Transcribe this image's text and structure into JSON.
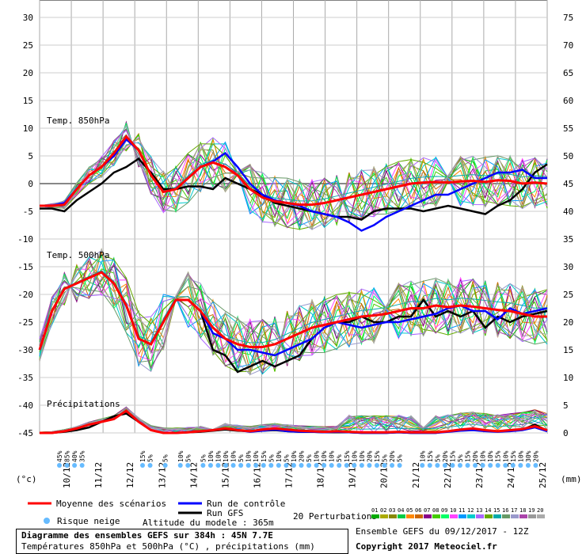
{
  "chart_data": {
    "type": "line",
    "panel_labels": [
      "Temp. 850hPa",
      "Temp. 500hPa",
      "Précipitations"
    ],
    "left_axis": {
      "unit": "(°c)",
      "ticks": [
        30,
        25,
        20,
        15,
        10,
        5,
        0,
        -5,
        -10,
        -15,
        -20,
        -25,
        -30,
        -35,
        -40,
        -45
      ],
      "range": [
        -45,
        30
      ]
    },
    "right_axis": {
      "unit": "(mm)",
      "ticks": [
        75,
        70,
        65,
        60,
        55,
        50,
        45,
        40,
        35,
        30,
        25,
        20,
        15,
        10,
        5,
        0
      ],
      "range": [
        0,
        75
      ]
    },
    "x_dates": [
      "10/12",
      "11/12",
      "12/12",
      "13/12",
      "14/12",
      "15/12",
      "16/12",
      "17/12",
      "18/12",
      "19/12",
      "20/12",
      "21/12",
      "22/12",
      "23/12",
      "24/12",
      "25/12"
    ],
    "snow_risk_pct": [
      "45%",
      "85%",
      "40%",
      "35%",
      "",
      "",
      "",
      "",
      "",
      "",
      "",
      "15%",
      "5%",
      "",
      "5%",
      "",
      "10%",
      "5%",
      "",
      "5%",
      "10%",
      "10%",
      "10%",
      "10%",
      "5%",
      "10%",
      "10%",
      "15%",
      "5%",
      "10%",
      "5%",
      "10%",
      "20%",
      "5%",
      "10%",
      "10%",
      "10%",
      "5%",
      "15%",
      "10%",
      "10%",
      "20%",
      "15%",
      "5%",
      "20%",
      "5%",
      "",
      "",
      "10%",
      "15%",
      "5%",
      "20%",
      "15%",
      "5%",
      "15%",
      "20%",
      "10%",
      "10%",
      "15%",
      "10%",
      "15%",
      "10%",
      "30%",
      "20%"
    ],
    "series": [
      {
        "name": "Moyenne des scénarios",
        "color": "#ff0000",
        "t850": [
          -4,
          -4,
          -3.8,
          -1,
          1.5,
          3,
          5.5,
          8.5,
          6,
          1.5,
          -1.5,
          -1,
          1,
          3,
          3.8,
          3,
          1.5,
          -1,
          -2.5,
          -3.2,
          -3.5,
          -3.8,
          -3.8,
          -3.5,
          -3,
          -2.5,
          -2,
          -1.5,
          -1,
          -0.5,
          0,
          0.2,
          0.3,
          0.2,
          0.4,
          0.5,
          0.3,
          0.6,
          0.5,
          0,
          0.2,
          0
        ],
        "t500": [
          -30,
          -23,
          -19,
          -18,
          -17,
          -16,
          -18,
          -22,
          -28,
          -29,
          -25,
          -21,
          -21,
          -23,
          -26,
          -28,
          -29,
          -29.5,
          -29.5,
          -29,
          -28,
          -27,
          -26,
          -25.5,
          -25,
          -24.5,
          -24,
          -23.8,
          -23.5,
          -23,
          -22.5,
          -22.5,
          -22,
          -22.3,
          -22,
          -22.2,
          -22.5,
          -22.8,
          -23,
          -23.5,
          -24,
          -24
        ],
        "precip": [
          0,
          0,
          0.3,
          0.8,
          1.5,
          2,
          2.5,
          4,
          2,
          0.5,
          0,
          0,
          0.1,
          0.3,
          0.5,
          0.8,
          0.5,
          0.3,
          0.6,
          0.8,
          0.6,
          0.4,
          0.3,
          0.2,
          0.3,
          0.2,
          0.1,
          0.1,
          0.1,
          0.2,
          0.1,
          0.1,
          0.1,
          0.3,
          0.6,
          0.8,
          0.5,
          0.3,
          0.5,
          0.7,
          1.2,
          0.5
        ]
      },
      {
        "name": "Run de contrôle",
        "color": "#0000ff",
        "t850": [
          -4,
          -4,
          -3.5,
          -1,
          1.5,
          3,
          5,
          8,
          6,
          1.5,
          -1.5,
          -1,
          1,
          3,
          4,
          5.5,
          3,
          0,
          -2,
          -3,
          -3.5,
          -4,
          -5,
          -5.5,
          -6,
          -7,
          -8.5,
          -7.5,
          -6,
          -5,
          -4,
          -3,
          -2,
          -2,
          -1,
          0,
          1,
          2,
          2,
          2.5,
          1,
          1
        ],
        "t500": [
          -30,
          -23,
          -19,
          -18,
          -17,
          -16,
          -18,
          -22,
          -28,
          -29,
          -25,
          -21,
          -21,
          -23,
          -27,
          -28,
          -30,
          -30,
          -30.5,
          -31,
          -30,
          -29,
          -28,
          -26,
          -25,
          -25.5,
          -26,
          -25.5,
          -25,
          -25,
          -24.5,
          -24,
          -23.5,
          -22.5,
          -22,
          -23,
          -23,
          -24.5,
          -22.5,
          -23.5,
          -23,
          -22.5
        ],
        "precip": [
          0,
          0,
          0.3,
          0.8,
          1.5,
          2,
          2.5,
          4,
          2,
          0.5,
          0,
          0,
          0.1,
          0.3,
          0.5,
          0.8,
          0.5,
          0.2,
          0.4,
          0.6,
          0.3,
          0.2,
          0.2,
          0.1,
          0.2,
          0.1,
          0,
          0,
          0,
          0.1,
          0,
          0,
          0,
          0.2,
          0.4,
          0.5,
          0.3,
          0.2,
          0.3,
          0.5,
          1,
          0.3
        ]
      },
      {
        "name": "Run GFS",
        "color": "#000000",
        "t850": [
          -4.5,
          -4.5,
          -5,
          -3,
          -1.5,
          0,
          2,
          3,
          4.5,
          2,
          -1,
          -1,
          -0.5,
          -0.5,
          -1,
          1,
          0,
          -1,
          -2,
          -3.5,
          -4,
          -4.5,
          -5,
          -5.5,
          -6,
          -6,
          -6.5,
          -5,
          -4.5,
          -4.5,
          -4.5,
          -5,
          -4.5,
          -4,
          -4.5,
          -5,
          -5.5,
          -4,
          -3,
          -1,
          2,
          3.5
        ],
        "t500": [
          -30,
          -23,
          -19,
          -18,
          -17,
          -16,
          -18,
          -22,
          -28,
          -29,
          -25,
          -21,
          -21,
          -23,
          -30,
          -31,
          -34,
          -33,
          -32,
          -33,
          -32,
          -31,
          -28,
          -26,
          -25,
          -25,
          -24,
          -25,
          -25,
          -24,
          -24,
          -21,
          -24,
          -23,
          -24,
          -23,
          -26,
          -24,
          -25,
          -24,
          -23.5,
          -23
        ],
        "precip": [
          0,
          0,
          0.2,
          0.5,
          1,
          2,
          3,
          3.5,
          2,
          0.5,
          0,
          0,
          0.1,
          0.2,
          0.4,
          0.6,
          0.4,
          0.3,
          0.4,
          0.5,
          0.3,
          0.2,
          0.2,
          0.1,
          0.1,
          0.1,
          0,
          0,
          0,
          0.1,
          0,
          0,
          0,
          0.3,
          0.5,
          0.6,
          0.4,
          0.3,
          0.4,
          0.6,
          1.5,
          0.4
        ]
      }
    ],
    "perturbations": {
      "label": "20 Perturbations",
      "ids": [
        "01",
        "02",
        "03",
        "04",
        "05",
        "06",
        "07",
        "08",
        "09",
        "10",
        "11",
        "12",
        "13",
        "14",
        "15",
        "16",
        "17",
        "18",
        "19",
        "20"
      ],
      "colors": [
        "#00aa00",
        "#aaaa00",
        "#888800",
        "#00cc44",
        "#ff8800",
        "#cc6600",
        "#880088",
        "#44cc00",
        "#00ff66",
        "#ff44ff",
        "#0099ff",
        "#00cccc",
        "#aa66ff",
        "#66aa00",
        "#00aaaa",
        "#669966",
        "#9999cc",
        "#aa44aa",
        "#999999",
        "#aaaaaa"
      ]
    }
  },
  "legend": {
    "mean": "Moyenne des scénarios",
    "control": "Run de contrôle",
    "gfs": "Run GFS",
    "perturbations": "20 Perturbations",
    "snow": "Risque neige",
    "altitude": "Altitude du modele : 365m"
  },
  "info": {
    "line1": "Diagramme des ensembles GEFS sur 384h : 45N 7.7E",
    "line2": "Températures 850hPa et 500hPa (°C) , précipitations (mm)"
  },
  "footer": {
    "run": "Ensemble GEFS du 09/12/2017 - 12Z",
    "copyright": "Copyright 2017 Meteociel.fr"
  }
}
